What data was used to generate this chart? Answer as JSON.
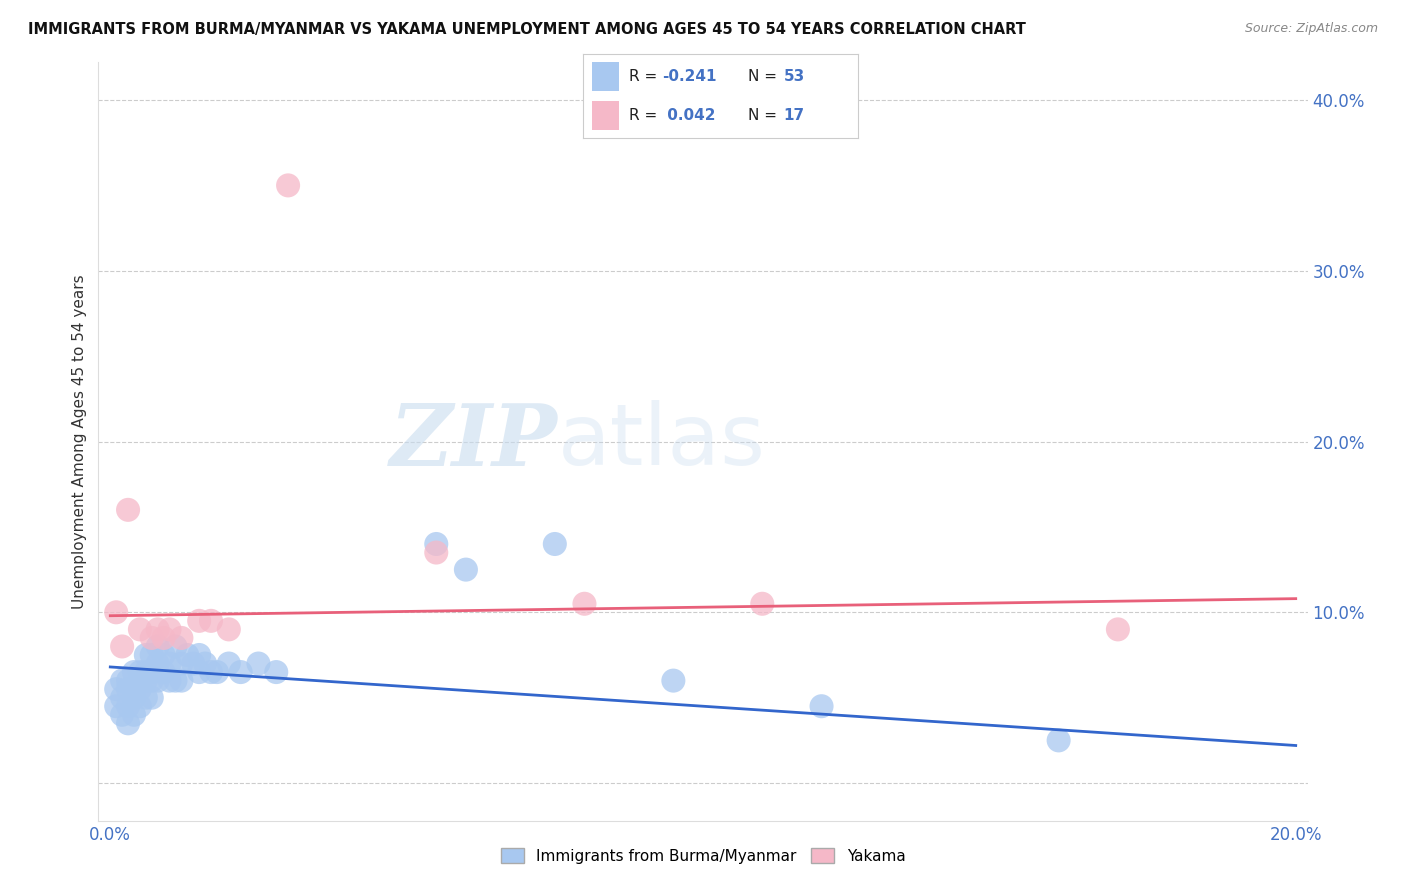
{
  "title": "IMMIGRANTS FROM BURMA/MYANMAR VS YAKAMA UNEMPLOYMENT AMONG AGES 45 TO 54 YEARS CORRELATION CHART",
  "source": "Source: ZipAtlas.com",
  "ylabel": "Unemployment Among Ages 45 to 54 years",
  "xlim": [
    -0.002,
    0.202
  ],
  "ylim": [
    -0.022,
    0.422
  ],
  "yticks": [
    0.0,
    0.1,
    0.2,
    0.3,
    0.4
  ],
  "ytick_labels": [
    "",
    "10.0%",
    "20.0%",
    "30.0%",
    "40.0%"
  ],
  "xticks": [
    0.0,
    0.05,
    0.1,
    0.15,
    0.2
  ],
  "xtick_labels": [
    "0.0%",
    "",
    "",
    "",
    "20.0%"
  ],
  "blue_color": "#A8C8F0",
  "blue_line_color": "#3366CC",
  "pink_color": "#F5B8C8",
  "pink_line_color": "#E8607A",
  "legend_label_blue": "Immigrants from Burma/Myanmar",
  "legend_label_pink": "Yakama",
  "watermark_zip": "ZIP",
  "watermark_atlas": "atlas",
  "blue_scatter_x": [
    0.001,
    0.001,
    0.002,
    0.002,
    0.002,
    0.003,
    0.003,
    0.003,
    0.003,
    0.004,
    0.004,
    0.004,
    0.004,
    0.005,
    0.005,
    0.005,
    0.005,
    0.006,
    0.006,
    0.006,
    0.006,
    0.007,
    0.007,
    0.007,
    0.007,
    0.008,
    0.008,
    0.008,
    0.009,
    0.009,
    0.01,
    0.01,
    0.011,
    0.011,
    0.012,
    0.012,
    0.013,
    0.014,
    0.015,
    0.015,
    0.016,
    0.017,
    0.018,
    0.02,
    0.022,
    0.025,
    0.028,
    0.055,
    0.06,
    0.075,
    0.095,
    0.16,
    0.12
  ],
  "blue_scatter_y": [
    0.055,
    0.045,
    0.06,
    0.05,
    0.04,
    0.06,
    0.055,
    0.045,
    0.035,
    0.065,
    0.055,
    0.05,
    0.04,
    0.065,
    0.06,
    0.055,
    0.045,
    0.075,
    0.065,
    0.06,
    0.05,
    0.075,
    0.065,
    0.06,
    0.05,
    0.08,
    0.07,
    0.06,
    0.075,
    0.065,
    0.07,
    0.06,
    0.08,
    0.06,
    0.07,
    0.06,
    0.075,
    0.07,
    0.075,
    0.065,
    0.07,
    0.065,
    0.065,
    0.07,
    0.065,
    0.07,
    0.065,
    0.14,
    0.125,
    0.14,
    0.06,
    0.025,
    0.045
  ],
  "pink_scatter_x": [
    0.001,
    0.003,
    0.005,
    0.007,
    0.008,
    0.009,
    0.01,
    0.012,
    0.015,
    0.017,
    0.02,
    0.03,
    0.055,
    0.08,
    0.11,
    0.17,
    0.002
  ],
  "pink_scatter_y": [
    0.1,
    0.16,
    0.09,
    0.085,
    0.09,
    0.085,
    0.09,
    0.085,
    0.095,
    0.095,
    0.09,
    0.35,
    0.135,
    0.105,
    0.105,
    0.09,
    0.08
  ],
  "blue_line_x0": 0.0,
  "blue_line_x1": 0.2,
  "blue_line_y0": 0.068,
  "blue_line_y1": 0.022,
  "pink_line_x0": 0.0,
  "pink_line_x1": 0.2,
  "pink_line_y0": 0.098,
  "pink_line_y1": 0.108
}
